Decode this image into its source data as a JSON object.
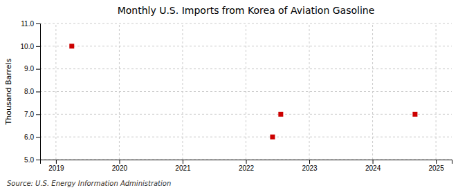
{
  "chart_data": {
    "type": "scatter",
    "title": "Monthly U.S. Imports from Korea of Aviation Gasoline",
    "ylabel": "Thousand Barrels",
    "source": "Source: U.S. Energy Information Administration",
    "x": [
      2019.25,
      2022.42,
      2022.55,
      2024.67
    ],
    "values": [
      10.0,
      6.0,
      7.0,
      7.0
    ],
    "color": "#cc0000",
    "marker": "square",
    "xlim": [
      2018.75,
      2025.25
    ],
    "ylim": [
      5.0,
      11.0
    ],
    "xticks": [
      2019,
      2020,
      2021,
      2022,
      2023,
      2024,
      2025
    ],
    "yticks": [
      {
        "value": 5.0,
        "label": "5.0"
      },
      {
        "value": 6.0,
        "label": "6.0"
      },
      {
        "value": 7.0,
        "label": "7.0"
      },
      {
        "value": 8.0,
        "label": "8.0"
      },
      {
        "value": 9.0,
        "label": "9.0"
      },
      {
        "value": 10.0,
        "label": "10.0"
      },
      {
        "value": 11.0,
        "label": "11.0"
      }
    ],
    "grid": true
  }
}
